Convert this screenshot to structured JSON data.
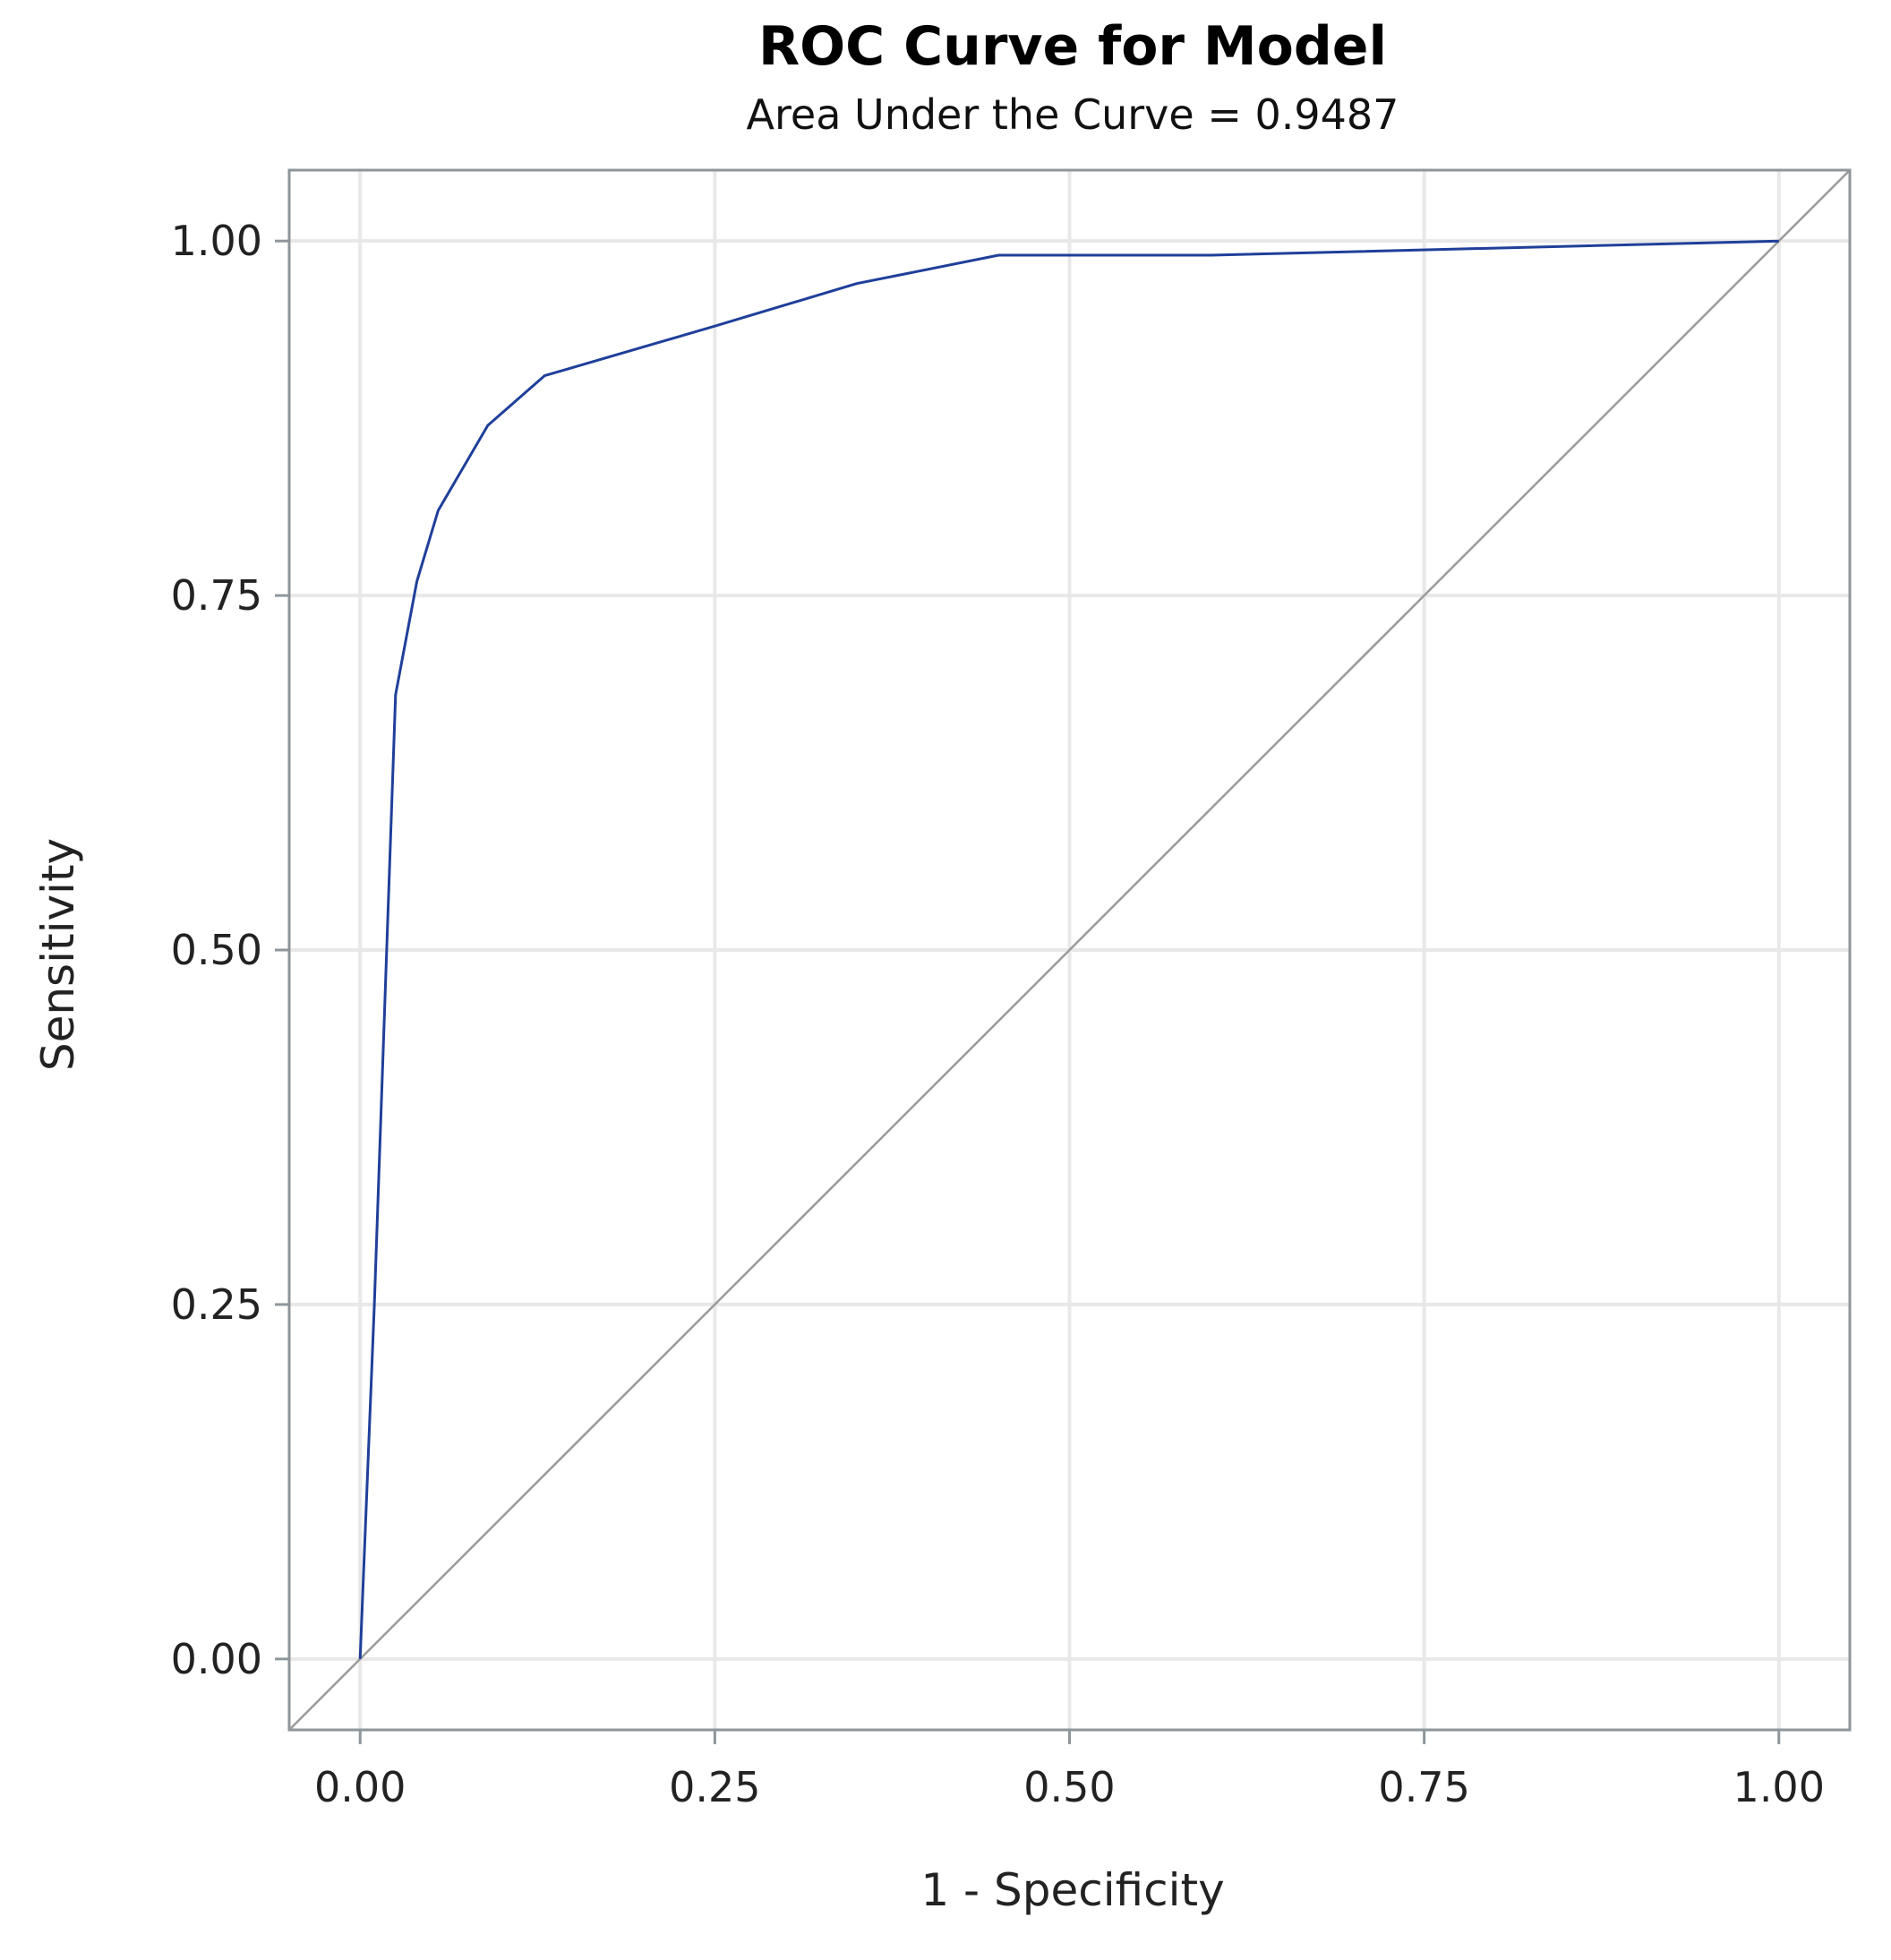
{
  "chart_data": {
    "type": "line",
    "title": "ROC Curve for Model",
    "subtitle": "Area Under the Curve = 0.9487",
    "xlabel": "1 - Specificity",
    "ylabel": "Sensitivity",
    "xlim": [
      -0.05,
      1.05
    ],
    "ylim": [
      -0.05,
      1.05
    ],
    "x_ticks": [
      "0.00",
      "0.25",
      "0.50",
      "0.75",
      "1.00"
    ],
    "y_ticks": [
      "0.00",
      "0.25",
      "0.50",
      "0.75",
      "1.00"
    ],
    "x_tick_values": [
      0,
      0.25,
      0.5,
      0.75,
      1.0
    ],
    "y_tick_values": [
      0,
      0.25,
      0.5,
      0.75,
      1.0
    ],
    "grid": true,
    "series": [
      {
        "color": "#1f3f9a",
        "x": [
          0.0,
          0.01,
          0.025,
          0.04,
          0.055,
          0.09,
          0.13,
          0.25,
          0.35,
          0.45,
          0.6,
          0.8,
          1.0
        ],
        "y": [
          0.0,
          0.25,
          0.68,
          0.76,
          0.81,
          0.87,
          0.905,
          0.94,
          0.97,
          0.99,
          0.99,
          0.995,
          1.0
        ]
      }
    ],
    "reference_line": {
      "x": [
        0,
        1
      ],
      "y": [
        0,
        1
      ],
      "color": "#9a9a9a"
    }
  }
}
